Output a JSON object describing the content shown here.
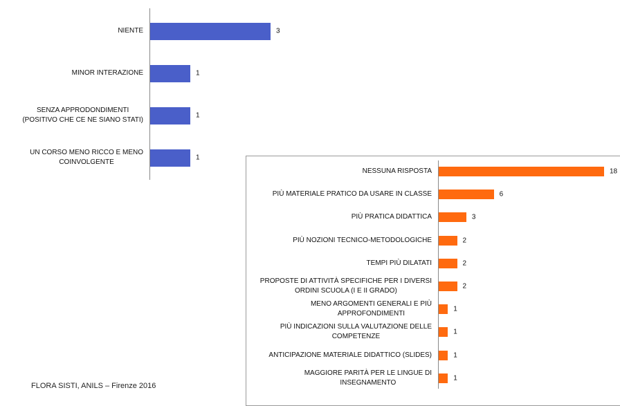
{
  "chart_data": [
    {
      "type": "bar",
      "orientation": "horizontal",
      "color": "#4a5fc9",
      "categories": [
        "NIENTE",
        "MINOR INTERAZIONE",
        "SENZA APPRODONDIMENTI\n(POSITIVO  CHE CE NE SIANO  STATI)",
        "UN CORSO MENO RICCO E MENO\nCOINVOLGENTE"
      ],
      "values": [
        3,
        1,
        1,
        1
      ]
    },
    {
      "type": "bar",
      "orientation": "horizontal",
      "color": "#ff6a0f",
      "categories": [
        "NESSUNA RISPOSTA",
        "PIÙ MATERIALE PRATICO DA USARE IN CLASSE",
        "PIÙ PRATICA DIDATTICA",
        "PIÙ NOZIONI TECNICO-METODOLOGICHE",
        "TEMPI PIÙ DILATATI",
        "PROPOSTE DI ATTIVITÀ SPECIFICHE PER I DIVERSI\nORDINI SCUOLA (I E II GRADO)",
        "MENO ARGOMENTI GENERALI  E PIÙ\nAPPROFONDIMENTI",
        "PIÙ INDICAZIONI SULLA VALUTAZIONE DELLE\nCOMPETENZE",
        "ANTICIPAZIONE MATERIALE DIDATTICO (SLIDES)",
        "MAGGIORE PARITÀ PER LE LINGUE DI\nINSEGNAMENTO"
      ],
      "values": [
        18,
        6,
        3,
        2,
        2,
        2,
        1,
        1,
        1,
        1
      ]
    }
  ],
  "footer": "FLORA SISTI, ANILS – Firenze 2016"
}
